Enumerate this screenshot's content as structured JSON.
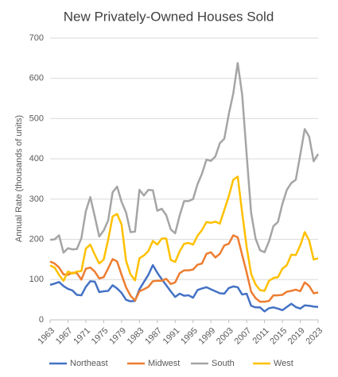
{
  "chart_data": {
    "type": "line",
    "title": "New Privately-Owned Houses Sold",
    "y_label": "Annual Rate (thousands of units)",
    "x": [
      1963,
      1964,
      1965,
      1966,
      1967,
      1968,
      1969,
      1970,
      1971,
      1972,
      1973,
      1974,
      1975,
      1976,
      1977,
      1978,
      1979,
      1980,
      1981,
      1982,
      1983,
      1984,
      1985,
      1986,
      1987,
      1988,
      1989,
      1990,
      1991,
      1992,
      1993,
      1994,
      1995,
      1996,
      1997,
      1998,
      1999,
      2000,
      2001,
      2002,
      2003,
      2004,
      2005,
      2006,
      2007,
      2008,
      2009,
      2010,
      2011,
      2012,
      2013,
      2014,
      2015,
      2016,
      2017,
      2018,
      2019,
      2020,
      2021,
      2022,
      2023
    ],
    "xlim": [
      1963,
      2023
    ],
    "xticks": [
      1963,
      1967,
      1971,
      1975,
      1979,
      1983,
      1987,
      1991,
      1995,
      1999,
      2003,
      2007,
      2011,
      2015,
      2019,
      2023
    ],
    "ylim": [
      0,
      700
    ],
    "yticks": [
      0,
      100,
      200,
      300,
      400,
      500,
      600,
      700
    ],
    "grid": true,
    "series": [
      {
        "name": "Northeast",
        "color": "#4472c4",
        "values": [
          87,
          90,
          94,
          84,
          77,
          73,
          62,
          61,
          82,
          96,
          95,
          69,
          71,
          72,
          86,
          78,
          67,
          50,
          46,
          47,
          76,
          94,
          112,
          136,
          117,
          101,
          86,
          71,
          57,
          65,
          60,
          61,
          55,
          74,
          78,
          81,
          76,
          71,
          66,
          65,
          79,
          83,
          81,
          63,
          65,
          35,
          31,
          31,
          21,
          29,
          31,
          28,
          24,
          32,
          40,
          32,
          28,
          36,
          35,
          33,
          32
        ]
      },
      {
        "name": "Midwest",
        "color": "#ed7d31",
        "values": [
          145,
          140,
          130,
          113,
          112,
          117,
          116,
          100,
          127,
          130,
          120,
          103,
          106,
          128,
          151,
          145,
          112,
          81,
          60,
          48,
          71,
          76,
          82,
          96,
          97,
          97,
          102,
          89,
          93,
          116,
          123,
          123,
          125,
          137,
          140,
          164,
          168,
          155,
          164,
          185,
          189,
          210,
          205,
          161,
          118,
          70,
          54,
          45,
          45,
          47,
          61,
          61,
          62,
          70,
          72,
          75,
          71,
          93,
          84,
          66,
          68
        ]
      },
      {
        "name": "South",
        "color": "#a5a5a5",
        "values": [
          199,
          200,
          210,
          167,
          178,
          175,
          176,
          203,
          270,
          305,
          257,
          207,
          222,
          247,
          317,
          331,
          293,
          267,
          218,
          219,
          323,
          309,
          323,
          322,
          271,
          276,
          260,
          225,
          215,
          259,
          295,
          295,
          300,
          337,
          363,
          398,
          395,
          406,
          439,
          450,
          511,
          562,
          638,
          559,
          411,
          266,
          202,
          173,
          168,
          195,
          233,
          243,
          288,
          323,
          340,
          348,
          410,
          474,
          455,
          394,
          412
        ]
      },
      {
        "name": "West",
        "color": "#ffc000",
        "values": [
          135,
          130,
          112,
          97,
          120,
          115,
          120,
          121,
          177,
          187,
          162,
          140,
          150,
          199,
          257,
          263,
          237,
          147,
          113,
          98,
          153,
          160,
          171,
          196,
          187,
          202,
          202,
          149,
          144,
          170,
          189,
          191,
          187,
          209,
          223,
          243,
          241,
          244,
          239,
          273,
          307,
          348,
          356,
          266,
          181,
          114,
          88,
          74,
          72,
          97,
          104,
          106,
          127,
          136,
          162,
          161,
          185,
          218,
          197,
          150,
          153
        ]
      }
    ]
  }
}
